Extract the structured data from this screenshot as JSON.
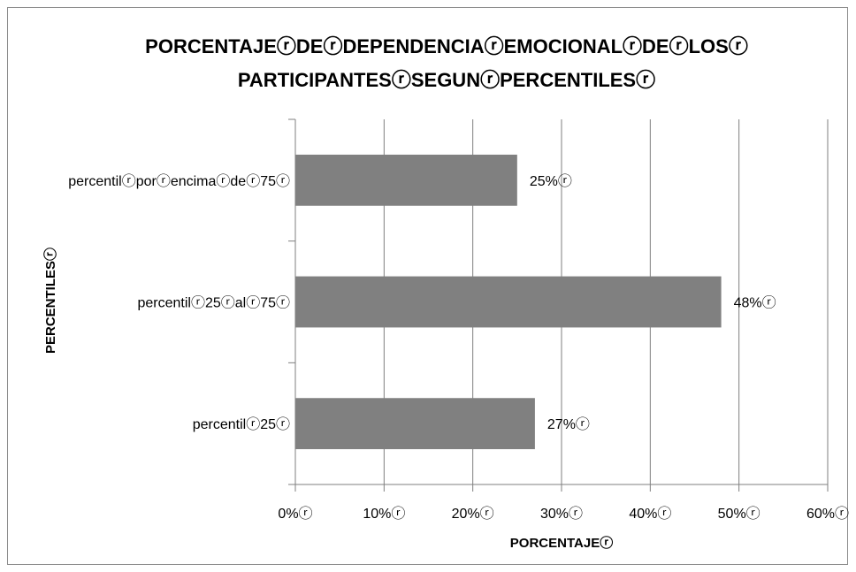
{
  "chart_data": {
    "type": "bar",
    "orientation": "horizontal",
    "title_lines": [
      "PORCENTAJEⓡDEⓡDEPENDENCIAⓡEMOCIONALⓡDEⓡLOSⓡ",
      "PARTICIPANTESⓡSEGUNⓡPERCENTILESⓡ"
    ],
    "xlabel": "PORCENTAJEⓡ",
    "ylabel": "PERCENTILESⓡ",
    "categories": [
      "percentilⓡporⓡencimaⓡdeⓡ75ⓡ",
      "percentilⓡ25ⓡalⓡ75ⓡ",
      "percentilⓡ25ⓡ"
    ],
    "values": [
      25,
      48,
      27
    ],
    "data_labels": [
      "25%ⓡ",
      "48%ⓡ",
      "27%ⓡ"
    ],
    "xlim": [
      0,
      60
    ],
    "x_ticks": [
      0,
      10,
      20,
      30,
      40,
      50,
      60
    ],
    "x_tick_labels": [
      "0%ⓡ",
      "10%ⓡ",
      "20%ⓡ",
      "30%ⓡ",
      "40%ⓡ",
      "50%ⓡ",
      "60%ⓡ"
    ],
    "grid": "vertical",
    "bar_color": "#808080",
    "grid_color": "#7f7f7f"
  }
}
